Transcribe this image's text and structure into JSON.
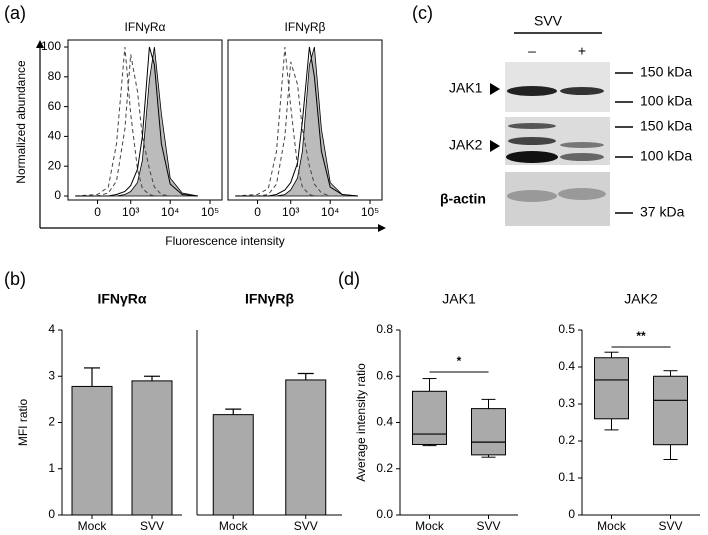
{
  "panel_labels": [
    "(a)",
    "(b)",
    "(c)",
    "(d)"
  ],
  "blot": {
    "header": "SVV",
    "lanes": [
      "–",
      "+"
    ],
    "rows": [
      {
        "label": "JAK1",
        "markers": [
          "150 kDa",
          "100 kDa"
        ]
      },
      {
        "label": "JAK2",
        "markers": [
          "150 kDa",
          "100 kDa"
        ]
      },
      {
        "label": "β-actin",
        "markers": [
          "37 kDa"
        ]
      }
    ]
  },
  "chart_data": [
    {
      "type": "density",
      "title": "IFNγRα",
      "ylabel": "Normalized abundance",
      "xlabel": "Fluorescence intensity",
      "x": [
        -500,
        0,
        200,
        400,
        700,
        1000,
        1500,
        2000,
        3000,
        4000,
        6000,
        10000,
        20000,
        50000
      ],
      "xlim": [
        -800,
        200000
      ],
      "ylim": [
        0,
        100
      ],
      "xticks": [
        0,
        {
          "value": 1000,
          "label": "10³"
        },
        {
          "value": 10000,
          "label": "10⁴"
        },
        {
          "value": 100000,
          "label": "10⁵"
        }
      ],
      "yticks": [
        0,
        20,
        40,
        60,
        80,
        100
      ],
      "series": [
        {
          "style": "filled",
          "color": "#bbbbbb",
          "values": [
            0,
            0,
            0,
            0,
            1,
            3,
            9,
            24,
            78,
            100,
            55,
            12,
            2,
            0
          ]
        },
        {
          "style": "dashed",
          "color": "#444444",
          "values": [
            0,
            1,
            6,
            35,
            100,
            55,
            18,
            5,
            1,
            0,
            0,
            0,
            0,
            0
          ]
        },
        {
          "style": "dashed",
          "color": "#444444",
          "values": [
            0,
            0,
            2,
            10,
            45,
            95,
            70,
            40,
            18,
            6,
            1,
            0,
            0,
            0
          ]
        },
        {
          "style": "solid",
          "color": "#000000",
          "values": [
            0,
            0,
            0,
            1,
            3,
            7,
            18,
            40,
            100,
            88,
            35,
            8,
            1,
            0
          ]
        }
      ]
    },
    {
      "type": "density",
      "title": "IFNγRβ",
      "x": [
        -500,
        0,
        200,
        400,
        700,
        1000,
        1500,
        2000,
        3000,
        4000,
        6000,
        10000,
        20000,
        50000
      ],
      "xlim": [
        -800,
        200000
      ],
      "ylim": [
        0,
        100
      ],
      "xticks": [
        0,
        {
          "value": 1000,
          "label": "10³"
        },
        {
          "value": 10000,
          "label": "10⁴"
        },
        {
          "value": 100000,
          "label": "10⁵"
        }
      ],
      "series": [
        {
          "style": "filled",
          "color": "#bbbbbb",
          "values": [
            0,
            0,
            0,
            0,
            1,
            4,
            12,
            30,
            88,
            100,
            45,
            9,
            1,
            0
          ]
        },
        {
          "style": "dashed",
          "color": "#444444",
          "values": [
            0,
            1,
            5,
            30,
            100,
            60,
            20,
            6,
            1,
            0,
            0,
            0,
            0,
            0
          ]
        },
        {
          "style": "dashed",
          "color": "#444444",
          "values": [
            0,
            0,
            1,
            8,
            40,
            90,
            75,
            45,
            20,
            8,
            2,
            0,
            0,
            0
          ]
        },
        {
          "style": "solid",
          "color": "#000000",
          "values": [
            0,
            0,
            0,
            1,
            4,
            9,
            22,
            50,
            100,
            80,
            30,
            6,
            1,
            0
          ]
        }
      ]
    },
    {
      "type": "bar",
      "title": "IFNγRα",
      "ylabel": "MFI ratio",
      "categories": [
        "Mock",
        "SVV"
      ],
      "values": [
        2.78,
        2.9
      ],
      "errors": [
        0.4,
        0.1
      ],
      "color": "#aaaaaa",
      "ylim": [
        0,
        4
      ],
      "yticks": [
        0,
        1,
        2,
        3,
        4
      ]
    },
    {
      "type": "bar",
      "title": "IFNγRβ",
      "categories": [
        "Mock",
        "SVV"
      ],
      "values": [
        2.17,
        2.92
      ],
      "errors": [
        0.12,
        0.14
      ],
      "color": "#aaaaaa",
      "ylim": [
        0,
        4
      ]
    },
    {
      "type": "box",
      "title": "JAK1",
      "ylabel": "Average intensity ratio",
      "categories": [
        "Mock",
        "SVV"
      ],
      "min": [
        0.3,
        0.25
      ],
      "q1": [
        0.305,
        0.26
      ],
      "median": [
        0.35,
        0.315
      ],
      "q3": [
        0.535,
        0.46
      ],
      "max": [
        0.59,
        0.5
      ],
      "color": "#aaaaaa",
      "ylim": [
        0,
        0.8
      ],
      "yticks": [
        {
          "value": 0,
          "label": "0.0"
        },
        0.2,
        0.4,
        0.6,
        0.8
      ],
      "significance": "*"
    },
    {
      "type": "box",
      "title": "JAK2",
      "categories": [
        "Mock",
        "SVV"
      ],
      "min": [
        0.23,
        0.15
      ],
      "q1": [
        0.26,
        0.19
      ],
      "median": [
        0.365,
        0.31
      ],
      "q3": [
        0.425,
        0.375
      ],
      "max": [
        0.44,
        0.39
      ],
      "color": "#aaaaaa",
      "ylim": [
        0,
        0.5
      ],
      "yticks": [
        0,
        0.1,
        0.2,
        0.3,
        0.4,
        0.5
      ],
      "significance": "**"
    }
  ]
}
